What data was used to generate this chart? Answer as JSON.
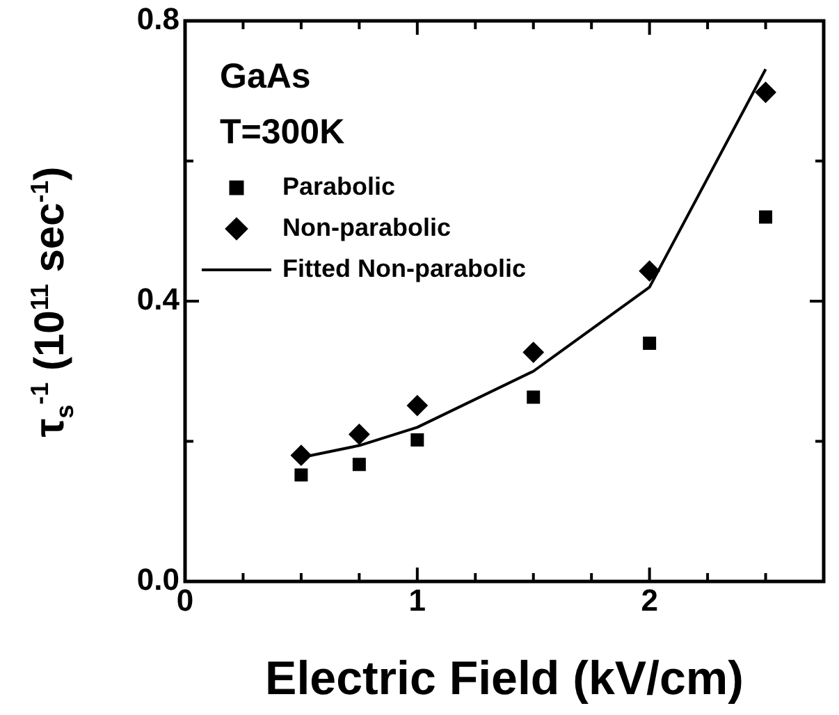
{
  "chart_data": {
    "type": "scatter",
    "xlabel": "Electric Field (kV/cm)",
    "ylabel": "τ$_{s}$$^{-1}$ (10$^{11}$ sec$^{-1}$)",
    "annotations": [
      "GaAs",
      "T=300K"
    ],
    "x": [
      0.5,
      0.75,
      1,
      1.5,
      2,
      2.5
    ],
    "series": [
      {
        "name": "Parabolic",
        "color": "#000000",
        "marker": "square",
        "values": [
          0.152,
          0.167,
          0.202,
          0.263,
          0.34,
          0.52
        ]
      },
      {
        "name": "Non-parabolic",
        "color": "#000000",
        "marker": "diamond",
        "values": [
          0.18,
          0.21,
          0.251,
          0.327,
          0.443,
          0.698
        ]
      },
      {
        "name": "Fitted Non-parabolic",
        "type": "line",
        "color": "#000000",
        "marker": "none",
        "line_style": "solid",
        "values": [
          0.177,
          0.194,
          0.22,
          0.3,
          0.42,
          0.731
        ]
      }
    ],
    "xlim": [
      0,
      2.75
    ],
    "xticks": [
      0,
      {
        "value": 0.25,
        "label": null
      },
      {
        "value": 0.5,
        "label": null
      },
      {
        "value": 0.75,
        "label": null
      },
      1,
      {
        "value": 1.25,
        "label": null
      },
      {
        "value": 1.5,
        "label": null
      },
      {
        "value": 1.75,
        "label": null
      },
      2,
      {
        "value": 2.25,
        "label": null
      },
      {
        "value": 2.5,
        "label": null
      }
    ],
    "ylim": [
      0,
      0.8
    ],
    "yticks": [
      {
        "value": 0,
        "label": "0.0"
      },
      {
        "value": 0.2,
        "label": null
      },
      {
        "value": 0.4,
        "label": "0.4"
      },
      {
        "value": 0.6,
        "label": null
      },
      {
        "value": 0.8,
        "label": "0.8"
      }
    ],
    "legend": "top left"
  }
}
